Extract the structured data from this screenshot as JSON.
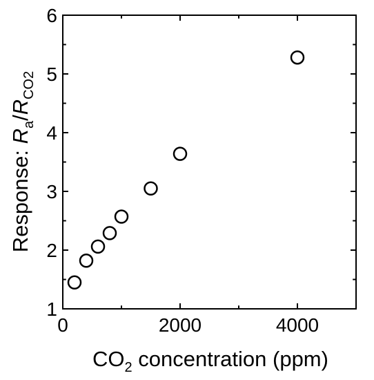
{
  "chart_data": {
    "type": "scatter",
    "title": "",
    "x": [
      200,
      400,
      600,
      800,
      1000,
      1500,
      2000,
      4000
    ],
    "y": [
      1.45,
      1.82,
      2.06,
      2.29,
      2.57,
      3.05,
      3.64,
      5.28
    ],
    "xlim": [
      0,
      5000
    ],
    "ylim": [
      1,
      6
    ],
    "xticks": [
      "0",
      "2000",
      "4000"
    ],
    "yticks": [
      "1",
      "2",
      "3",
      "4",
      "5",
      "6"
    ],
    "xlabel": {
      "prefix": "CO",
      "subscript": "2",
      "suffix": " concentration (ppm)"
    },
    "ylabel": {
      "prefix": "Response: ",
      "var1": "R",
      "sub1": "a",
      "slash": "/",
      "var2": "R",
      "sub2": "CO2"
    },
    "marker": "open-circle",
    "grid": false,
    "legend": "none",
    "colors": {
      "marker_edge": "#000000",
      "axis": "#000000"
    }
  }
}
